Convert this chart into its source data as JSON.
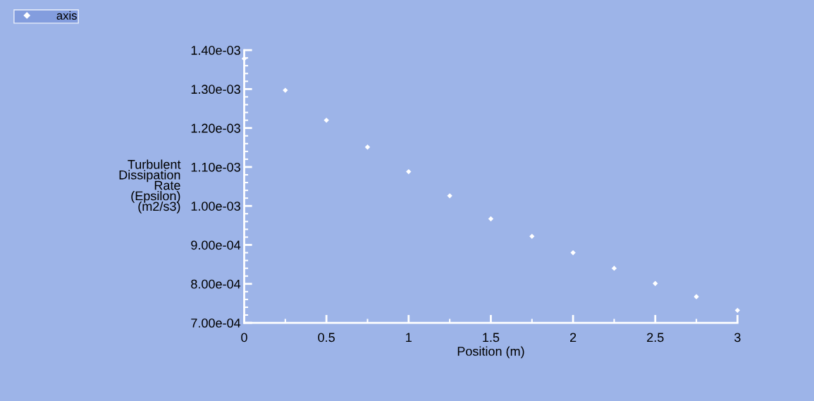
{
  "chart_data": {
    "type": "scatter",
    "xlabel": "Position (m)",
    "ylabel": "Turbulent\nDissipation\nRate\n(Epsilon)\n(m2/s3)",
    "series": [
      {
        "name": "axis",
        "color": "#ffffff",
        "marker": "diamond",
        "x": [
          0,
          0.25,
          0.5,
          0.75,
          1,
          1.25,
          1.5,
          1.75,
          2,
          2.25,
          2.5,
          2.75,
          3
        ],
        "values": [
          0.001378,
          0.001297,
          0.00122,
          0.001151,
          0.001088,
          0.001026,
          0.000967,
          0.000922,
          0.00088,
          0.00084,
          0.000801,
          0.000767,
          0.000732
        ]
      }
    ],
    "xlim": [
      0,
      3
    ],
    "xticks": [
      0,
      0.5,
      1,
      1.5,
      2,
      2.5,
      3
    ],
    "ylim": [
      0.0007,
      0.0014
    ],
    "yticks": [
      {
        "value": 0.0007,
        "label": "7.00e-04"
      },
      {
        "value": 0.0008,
        "label": "8.00e-04"
      },
      {
        "value": 0.0009,
        "label": "9.00e-04"
      },
      {
        "value": 0.001,
        "label": "1.00e-03"
      },
      {
        "value": 0.0011,
        "label": "1.10e-03"
      },
      {
        "value": 0.0012,
        "label": "1.20e-03"
      },
      {
        "value": 0.0013,
        "label": "1.30e-03"
      },
      {
        "value": 0.0014,
        "label": "1.40e-03"
      }
    ],
    "grid": false,
    "legend": "top left"
  }
}
